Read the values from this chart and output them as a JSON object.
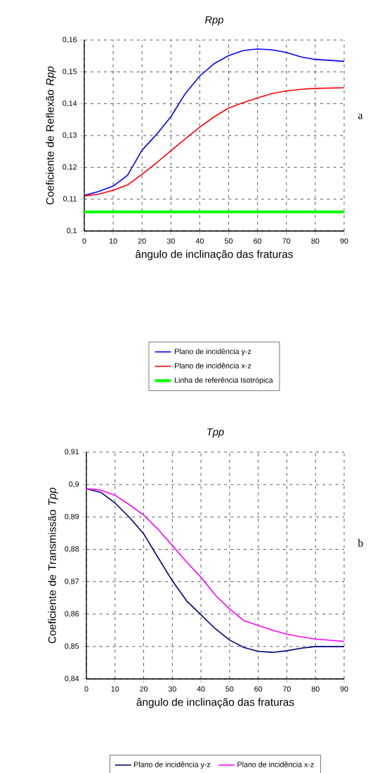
{
  "chart_data": [
    {
      "type": "line",
      "title": "Rpp",
      "xlabel": "ângulo de inclinação das fraturas",
      "ylabel": "Coeficiente de Reflexão *Rpp*",
      "annotations": [
        "a"
      ],
      "x": [
        0,
        5,
        10,
        15,
        20,
        25,
        30,
        35,
        40,
        45,
        50,
        55,
        60,
        65,
        70,
        75,
        80,
        90
      ],
      "series": [
        {
          "name": "Plano de incidência y-z",
          "color": "#0000ff",
          "values": [
            0.1112,
            0.1124,
            0.1141,
            0.1175,
            0.1254,
            0.1303,
            0.1359,
            0.1432,
            0.1487,
            0.1526,
            0.1551,
            0.1567,
            0.1572,
            0.1569,
            0.1561,
            0.1547,
            0.1539,
            0.1533
          ]
        },
        {
          "name": "Plano de incidência x-z",
          "color": "#ff0000",
          "values": [
            0.111,
            0.1116,
            0.1128,
            0.1145,
            0.1178,
            0.1214,
            0.1252,
            0.129,
            0.1326,
            0.1359,
            0.1386,
            0.1403,
            0.1418,
            0.1432,
            0.144,
            0.1445,
            0.1448,
            0.145
          ]
        }
      ],
      "ref_lines": [
        {
          "axis": "y",
          "value": 0.106,
          "label": "Linha de referência Isotrópica",
          "color": "#00ff00"
        }
      ],
      "xlim": [
        0,
        90
      ],
      "xticks": [
        0,
        10,
        20,
        30,
        40,
        50,
        60,
        70,
        80,
        90
      ],
      "ylim": [
        0.1,
        0.16
      ],
      "yticks": [
        {
          "value": 0.1,
          "label": "0,1"
        },
        {
          "value": 0.11,
          "label": "0,11"
        },
        {
          "value": 0.12,
          "label": "0,12"
        },
        {
          "value": 0.13,
          "label": "0,13"
        },
        {
          "value": 0.14,
          "label": "0,14"
        },
        {
          "value": 0.15,
          "label": "0,15"
        },
        {
          "value": 0.16,
          "label": "0,16"
        }
      ],
      "grid": true,
      "legend": "bottom",
      "marker": "none",
      "line_style": "solid"
    },
    {
      "type": "line",
      "title": "Tpp",
      "xlabel": "ângulo de inclinação das fraturas",
      "ylabel": "Coeficiente de Transmissão *Tpp*",
      "annotations": [
        "b"
      ],
      "x": [
        0,
        5,
        10,
        15,
        20,
        25,
        30,
        35,
        40,
        45,
        50,
        55,
        60,
        65,
        70,
        75,
        80,
        90
      ],
      "series": [
        {
          "name": "Plano de incidência y-z",
          "color": "#000080",
          "values": [
            0.8987,
            0.8976,
            0.8943,
            0.8899,
            0.8848,
            0.8775,
            0.8703,
            0.8641,
            0.8598,
            0.8555,
            0.852,
            0.8497,
            0.8485,
            0.8482,
            0.8487,
            0.8495,
            0.85,
            0.85
          ]
        },
        {
          "name": "Plano de incidência x-z",
          "color": "#ff00ff",
          "values": [
            0.8987,
            0.8983,
            0.8967,
            0.8938,
            0.8906,
            0.8862,
            0.8812,
            0.8761,
            0.8714,
            0.8659,
            0.8616,
            0.858,
            0.8565,
            0.855,
            0.8538,
            0.853,
            0.8523,
            0.8516
          ]
        }
      ],
      "xlim": [
        0,
        90
      ],
      "xticks": [
        0,
        10,
        20,
        30,
        40,
        50,
        60,
        70,
        80,
        90
      ],
      "ylim": [
        0.84,
        0.91
      ],
      "yticks": [
        {
          "value": 0.84,
          "label": "0,84"
        },
        {
          "value": 0.85,
          "label": "0,85"
        },
        {
          "value": 0.86,
          "label": "0,86"
        },
        {
          "value": 0.87,
          "label": "0,87"
        },
        {
          "value": 0.88,
          "label": "0,88"
        },
        {
          "value": 0.89,
          "label": "0,89"
        },
        {
          "value": 0.9,
          "label": "0,9"
        },
        {
          "value": 0.91,
          "label": "0,91"
        }
      ],
      "grid": true,
      "legend": "bottom",
      "marker": "none",
      "line_style": "solid"
    }
  ]
}
